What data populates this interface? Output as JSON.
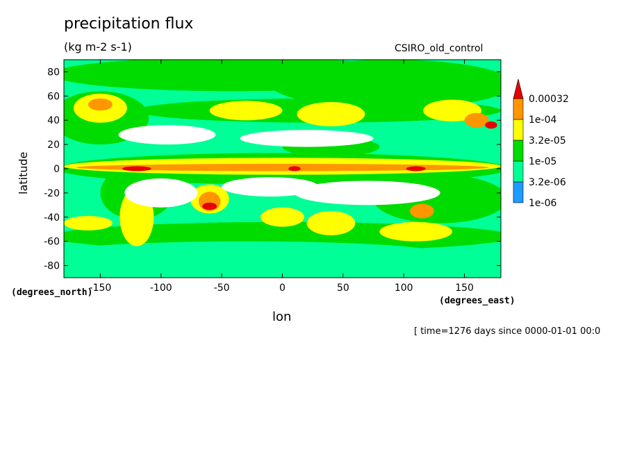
{
  "chart_data": {
    "type": "heatmap",
    "title": "precipitation flux",
    "subtitle": "(kg m-2 s-1)",
    "source_label": "CSIRO_old_control",
    "xlabel": "lon",
    "ylabel": "latitude",
    "x_units": "(degrees_east)",
    "y_units": "(degrees_north)",
    "xlim": [
      -180,
      180
    ],
    "ylim": [
      -90,
      90
    ],
    "x_ticks": [
      -150,
      -100,
      -50,
      0,
      50,
      100,
      150
    ],
    "y_ticks": [
      -80,
      -60,
      -40,
      -20,
      0,
      20,
      40,
      60,
      80
    ],
    "timestamp": "[ time=1276 days since 0000-01-01 00:0",
    "colorbar": {
      "levels": [
        "1e-06",
        "3.2e-06",
        "1e-05",
        "3.2e-05",
        "1e-04",
        "0.00032"
      ],
      "colors": [
        "#1e9bff",
        "#00ff96",
        "#00dc00",
        "#ffff00",
        "#ff9600",
        "#e60000"
      ],
      "below_color": "#ffffff"
    },
    "regions": [
      {
        "level": 2,
        "lon": -40,
        "lat": 78,
        "rlon": 150,
        "rlat": 14
      },
      {
        "level": 2,
        "lon": 90,
        "lat": 70,
        "rlon": 100,
        "rlat": 20
      },
      {
        "level": 2,
        "lon": -150,
        "lat": 42,
        "rlon": 40,
        "rlat": 22
      },
      {
        "level": 2,
        "lon": 30,
        "lat": 48,
        "rlon": 150,
        "rlat": 10
      },
      {
        "level": 2,
        "lon": 0,
        "lat": -56,
        "rlon": 190,
        "rlat": 12
      },
      {
        "level": 1,
        "lon": -30,
        "lat": -70,
        "rlon": 160,
        "rlat": 10
      },
      {
        "level": 2,
        "lon": 0,
        "lat": 0,
        "rlon": 185,
        "rlat": 13
      },
      {
        "level": 2,
        "lon": -120,
        "lat": -20,
        "rlon": 30,
        "rlat": 22
      },
      {
        "level": 2,
        "lon": 130,
        "lat": -25,
        "rlon": 55,
        "rlat": 20
      },
      {
        "level": 2,
        "lon": 40,
        "lat": 18,
        "rlon": 40,
        "rlat": 8
      },
      {
        "level": 3,
        "lon": 0,
        "lat": 2,
        "rlon": 180,
        "rlat": 7
      },
      {
        "level": 3,
        "lon": -150,
        "lat": 50,
        "rlon": 22,
        "rlat": 12
      },
      {
        "level": 3,
        "lon": -30,
        "lat": 48,
        "rlon": 30,
        "rlat": 8
      },
      {
        "level": 3,
        "lon": 40,
        "lat": 45,
        "rlon": 28,
        "rlat": 10
      },
      {
        "level": 3,
        "lon": 140,
        "lat": 48,
        "rlon": 24,
        "rlat": 9
      },
      {
        "level": 3,
        "lon": -120,
        "lat": -40,
        "rlon": 14,
        "rlat": 24
      },
      {
        "level": 3,
        "lon": -60,
        "lat": -25,
        "rlon": 16,
        "rlat": 12
      },
      {
        "level": 3,
        "lon": 0,
        "lat": -40,
        "rlon": 18,
        "rlat": 8
      },
      {
        "level": 3,
        "lon": 40,
        "lat": -45,
        "rlon": 20,
        "rlat": 10
      },
      {
        "level": 3,
        "lon": 110,
        "lat": -52,
        "rlon": 30,
        "rlat": 8
      },
      {
        "level": 3,
        "lon": -160,
        "lat": -45,
        "rlon": 20,
        "rlat": 6
      },
      {
        "level": 4,
        "lon": 0,
        "lat": 1,
        "rlon": 170,
        "rlat": 3
      },
      {
        "level": 4,
        "lon": -150,
        "lat": 53,
        "rlon": 10,
        "rlat": 5
      },
      {
        "level": 4,
        "lon": -60,
        "lat": -27,
        "rlon": 9,
        "rlat": 8
      },
      {
        "level": 4,
        "lon": 115,
        "lat": -35,
        "rlon": 10,
        "rlat": 6
      },
      {
        "level": 4,
        "lon": 160,
        "lat": 40,
        "rlon": 10,
        "rlat": 6
      },
      {
        "level": 5,
        "lon": -120,
        "lat": 0,
        "rlon": 12,
        "rlat": 2
      },
      {
        "level": 5,
        "lon": -60,
        "lat": -31,
        "rlon": 6,
        "rlat": 3
      },
      {
        "level": 5,
        "lon": 10,
        "lat": 0,
        "rlon": 5,
        "rlat": 2
      },
      {
        "level": 5,
        "lon": 110,
        "lat": 0,
        "rlon": 8,
        "rlat": 2
      },
      {
        "level": 5,
        "lon": 172,
        "lat": 36,
        "rlon": 5,
        "rlat": 3
      },
      {
        "level": 0,
        "lon": -95,
        "lat": 28,
        "rlon": 40,
        "rlat": 8
      },
      {
        "level": 0,
        "lon": 20,
        "lat": 25,
        "rlon": 55,
        "rlat": 7
      },
      {
        "level": 0,
        "lon": -100,
        "lat": -20,
        "rlon": 30,
        "rlat": 12
      },
      {
        "level": 0,
        "lon": 70,
        "lat": -20,
        "rlon": 60,
        "rlat": 10
      },
      {
        "level": 0,
        "lon": -10,
        "lat": -15,
        "rlon": 40,
        "rlat": 8
      }
    ]
  }
}
